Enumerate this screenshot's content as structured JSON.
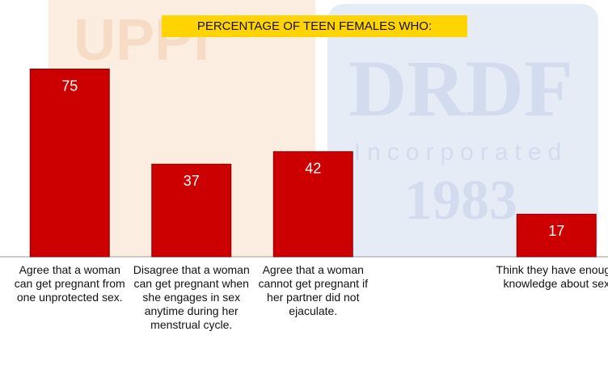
{
  "chart_data": {
    "type": "bar",
    "title": "PERCENTAGE OF TEEN FEMALES WHO:",
    "categories": [
      "Agree that a woman can get pregnant from one unprotected sex.",
      "Disagree that a woman can get pregnant when she engages in sex anytime during her menstrual cycle.",
      "Agree that a woman cannot get pregnant if her partner did not ejaculate.",
      null,
      "Think they have enough knowledge about sex"
    ],
    "values": [
      75,
      37,
      42,
      null,
      17
    ],
    "color": "#cc0000",
    "watermark": [
      "UPPI",
      "DRDF",
      "Incorporated",
      "1983"
    ]
  }
}
